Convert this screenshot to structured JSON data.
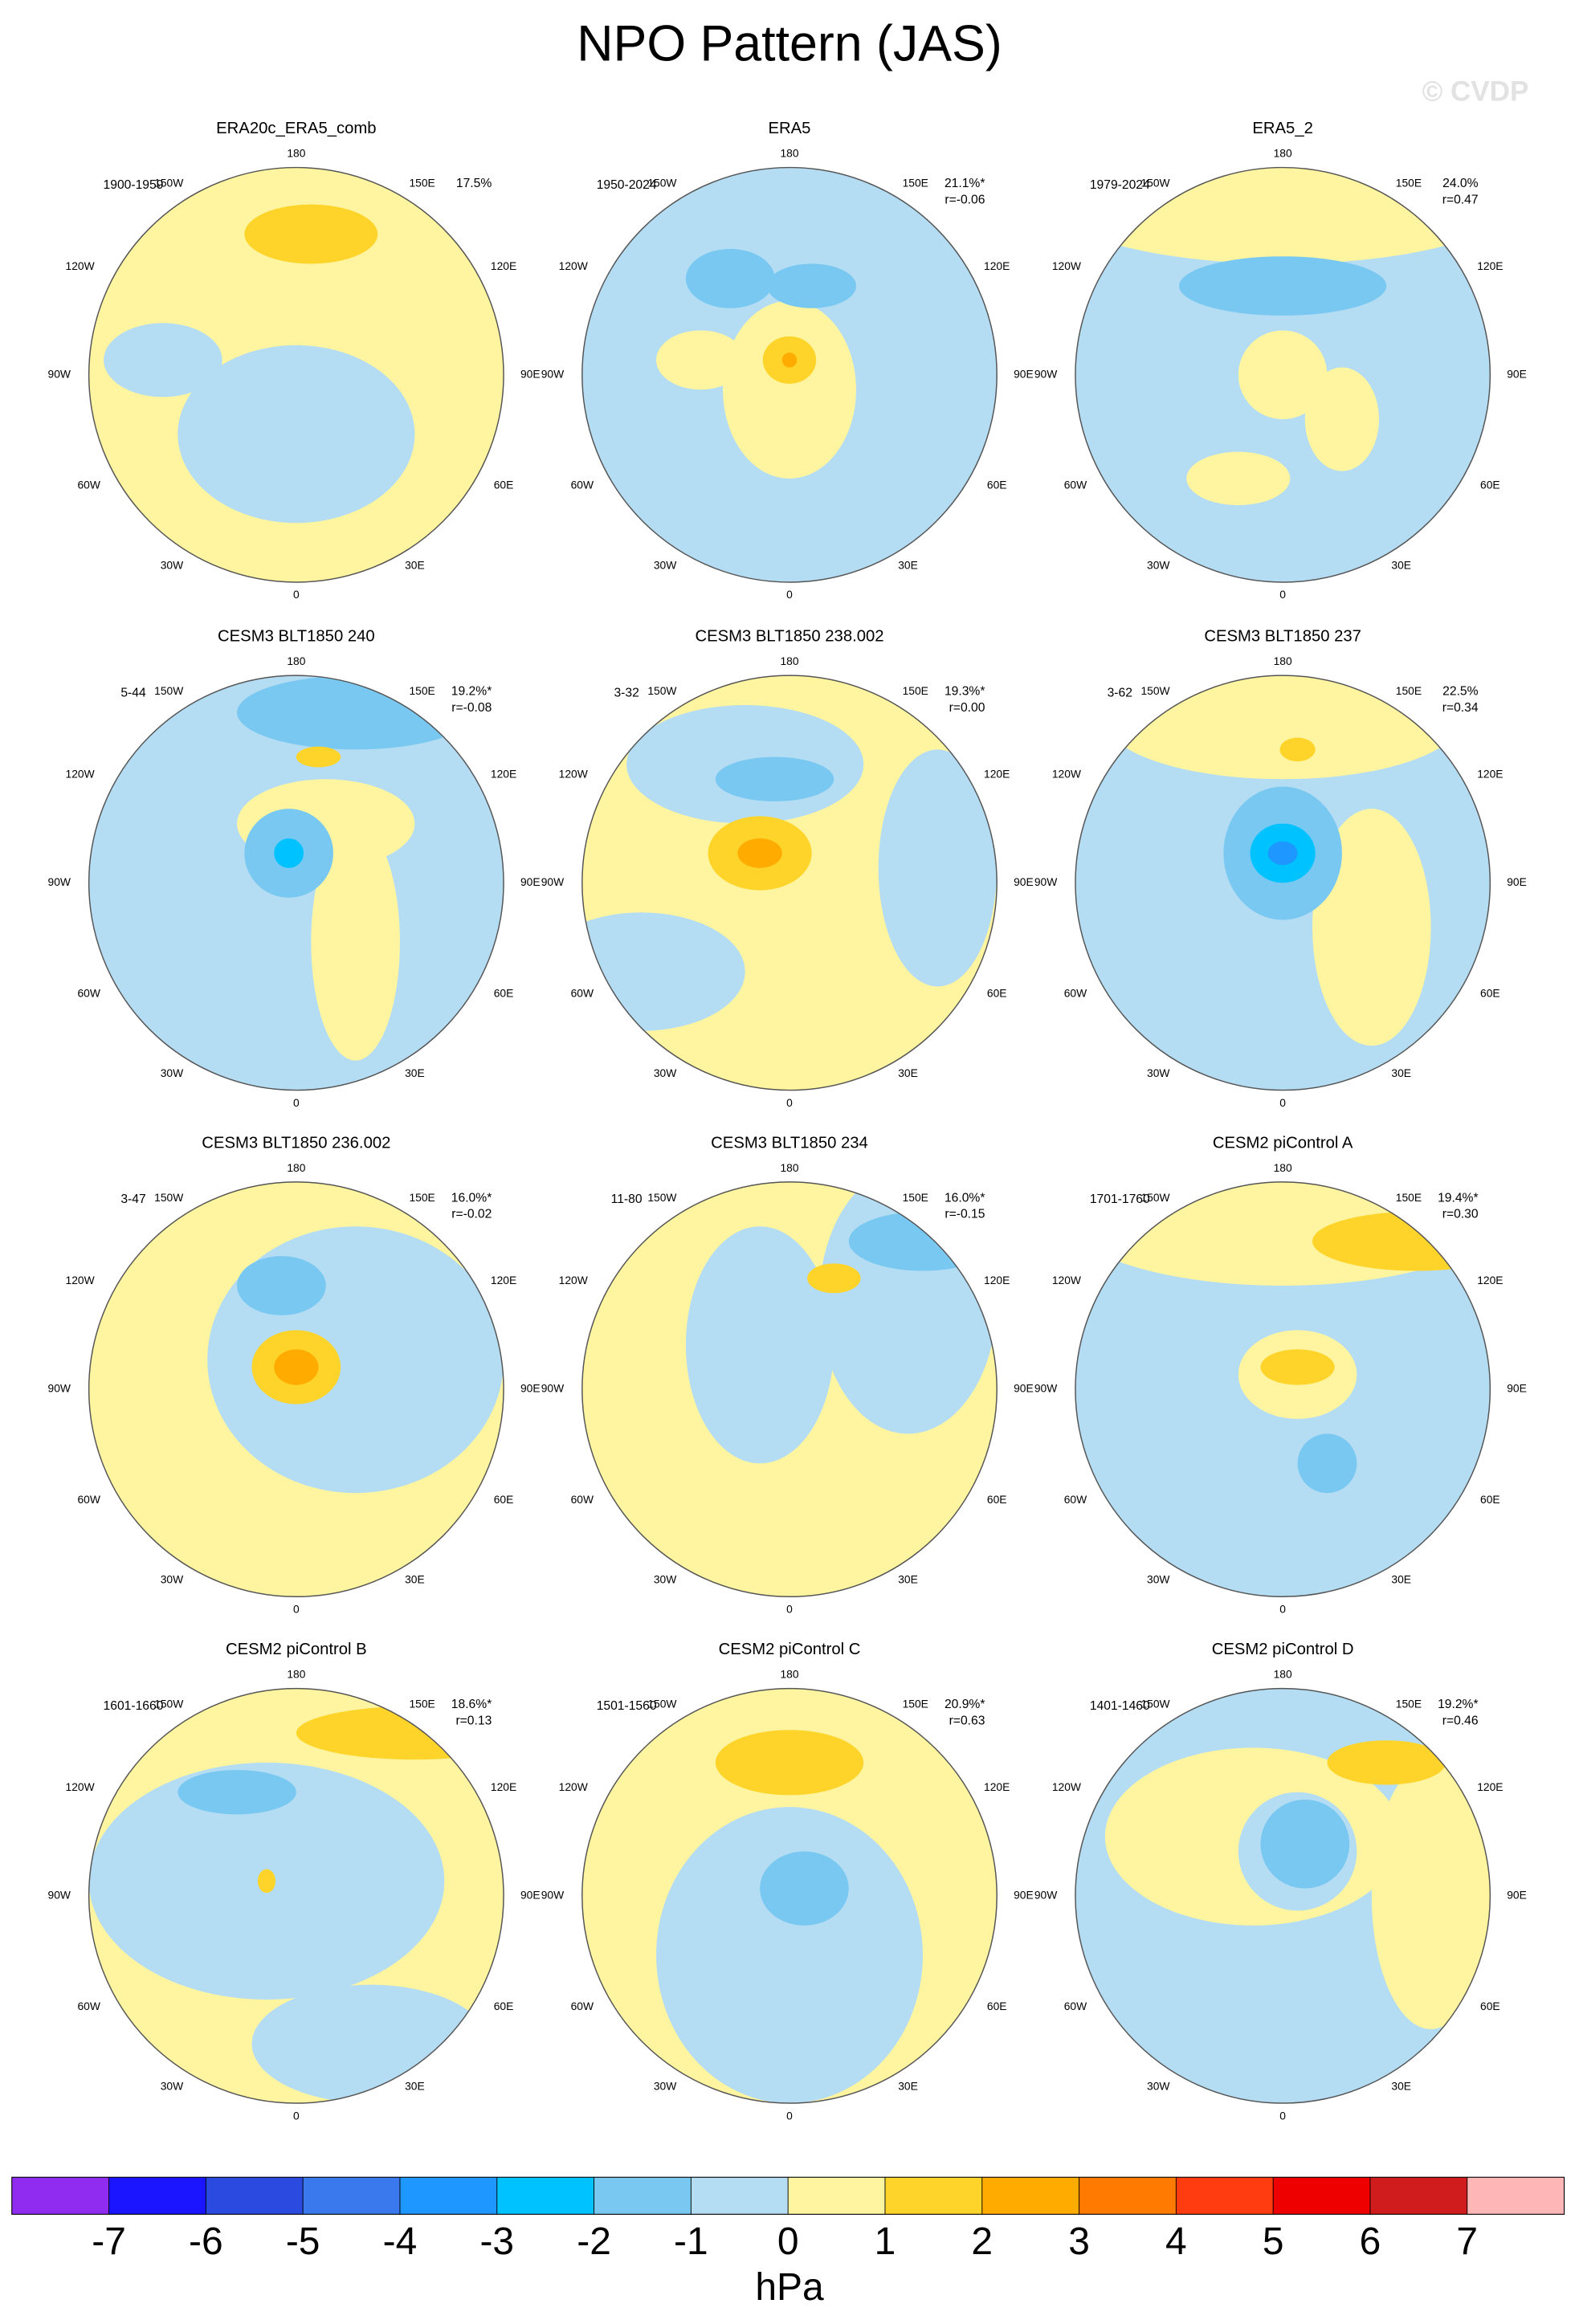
{
  "title": "NPO Pattern (JAS)",
  "watermark": "© CVDP",
  "lon_labels": {
    "top": "180",
    "bottom": "0",
    "w150": "150W",
    "e150": "150E",
    "w120": "120W",
    "e120": "120E",
    "w90": "90W",
    "e90": "90E",
    "w60": "60W",
    "e60": "60E",
    "w30": "30W",
    "e30": "30E"
  },
  "panels": [
    {
      "title": "ERA20c_ERA5_comb",
      "period": "1900-1959",
      "pct": "17.5%"
    },
    {
      "title": "ERA5",
      "period": "1950-2024",
      "pct": "21.1%*",
      "r": "r=-0.06"
    },
    {
      "title": "ERA5_2",
      "period": "1979-2024",
      "pct": "24.0%",
      "r": "r=0.47"
    },
    {
      "title": "CESM3 BLT1850 240",
      "period": "5-44",
      "pct": "19.2%*",
      "r": "r=-0.08"
    },
    {
      "title": "CESM3 BLT1850 238.002",
      "period": "3-32",
      "pct": "19.3%*",
      "r": "r=0.00"
    },
    {
      "title": "CESM3 BLT1850 237",
      "period": "3-62",
      "pct": "22.5%",
      "r": "r=0.34"
    },
    {
      "title": "CESM3 BLT1850 236.002",
      "period": "3-47",
      "pct": "16.0%*",
      "r": "r=-0.02"
    },
    {
      "title": "CESM3 BLT1850 234",
      "period": "11-80",
      "pct": "16.0%*",
      "r": "r=-0.15"
    },
    {
      "title": "CESM2 piControl A",
      "period": "1701-1760",
      "pct": "19.4%*",
      "r": "r=0.30"
    },
    {
      "title": "CESM2 piControl B",
      "period": "1601-1660",
      "pct": "18.6%*",
      "r": "r=0.13"
    },
    {
      "title": "CESM2 piControl C",
      "period": "1501-1560",
      "pct": "20.9%*",
      "r": "r=0.63"
    },
    {
      "title": "CESM2 piControl D",
      "period": "1401-1460",
      "pct": "19.2%*",
      "r": "r=0.46"
    }
  ],
  "colorbar": {
    "colors": [
      "#8f2cf0",
      "#1a14ff",
      "#2b4be0",
      "#3a78ee",
      "#1e98ff",
      "#00c2ff",
      "#78c8f2",
      "#b4dcf2",
      "#fff5a0",
      "#ffd42a",
      "#ffab00",
      "#ff7a00",
      "#ff3c10",
      "#ee0000",
      "#d01c1c",
      "#ffb6b6"
    ],
    "ticks": [
      -7,
      -6,
      -5,
      -4,
      -3,
      -2,
      -1,
      0,
      1,
      2,
      3,
      4,
      5,
      6,
      7
    ],
    "label": "hPa"
  }
}
